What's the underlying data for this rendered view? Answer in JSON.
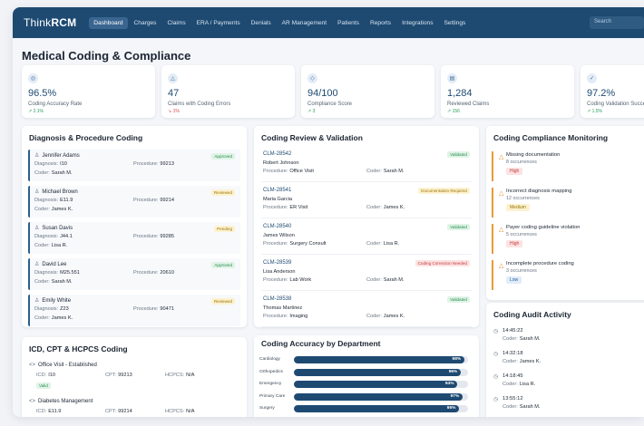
{
  "app": {
    "logo_think": "Think",
    "logo_rcm": "RCM",
    "search_placeholder": "Search"
  },
  "nav": [
    "Dashboard",
    "Charges",
    "Claims",
    "ERA / Payments",
    "Denials",
    "AR Management",
    "Patients",
    "Reports",
    "Integrations",
    "Settings"
  ],
  "page_title": "Medical Coding & Compliance",
  "stats": [
    {
      "icon": "target-icon",
      "glyph": "◎",
      "value": "96.5%",
      "label": "Coding Accuracy Rate",
      "change": "↗ 2.1%",
      "dir": "up"
    },
    {
      "icon": "warning-icon",
      "glyph": "△",
      "value": "47",
      "label": "Claims with Coding Errors",
      "change": "↘ 1%",
      "dir": "down"
    },
    {
      "icon": "shield-icon",
      "glyph": "◇",
      "value": "94/100",
      "label": "Compliance Score",
      "change": "↗ 3",
      "dir": "up"
    },
    {
      "icon": "document-icon",
      "glyph": "▤",
      "value": "1,284",
      "label": "Reviewed Claims",
      "change": "↗ 156",
      "dir": "up"
    },
    {
      "icon": "check-circle-icon",
      "glyph": "✓",
      "value": "97.2%",
      "label": "Coding Validation Success",
      "change": "↗ 1.5%",
      "dir": "up"
    }
  ],
  "diagnosis": {
    "title": "Diagnosis & Procedure Coding",
    "dx_label": "Diagnosis:",
    "proc_label": "Procedure:",
    "coder_label": "Coder:",
    "items": [
      {
        "name": "Jennifer Adams",
        "status": "Approved",
        "tone": "green",
        "diagnosis": "I10",
        "procedure": "99213",
        "coder": "Sarah M."
      },
      {
        "name": "Michael Brown",
        "status": "Reviewed",
        "tone": "yellow",
        "diagnosis": "E11.9",
        "procedure": "99214",
        "coder": "James K."
      },
      {
        "name": "Susan Davis",
        "status": "Pending",
        "tone": "yellow",
        "diagnosis": "J44.1",
        "procedure": "99285",
        "coder": "Lisa R."
      },
      {
        "name": "David Lee",
        "status": "Approved",
        "tone": "green",
        "diagnosis": "M25.551",
        "procedure": "20610",
        "coder": "Sarah M."
      },
      {
        "name": "Emily White",
        "status": "Reviewed",
        "tone": "yellow",
        "diagnosis": "Z23",
        "procedure": "90471",
        "coder": "James K."
      }
    ]
  },
  "review": {
    "title": "Coding Review & Validation",
    "proc_label": "Procedure:",
    "coder_label": "Coder:",
    "items": [
      {
        "id": "CLM-28542",
        "name": "Robert Johnson",
        "procedure": "Office Visit",
        "coder": "Sarah M.",
        "status": "Validated",
        "tone": "green"
      },
      {
        "id": "CLM-28541",
        "name": "Maria Garcia",
        "procedure": "ER Visit",
        "coder": "James K.",
        "status": "Documentation Required",
        "tone": "yellow"
      },
      {
        "id": "CLM-28540",
        "name": "James Wilson",
        "procedure": "Surgery Consult",
        "coder": "Lisa R.",
        "status": "Validated",
        "tone": "green"
      },
      {
        "id": "CLM-28539",
        "name": "Lisa Anderson",
        "procedure": "Lab Work",
        "coder": "Sarah M.",
        "status": "Coding Correction Needed",
        "tone": "red"
      },
      {
        "id": "CLM-28538",
        "name": "Thomas Martinez",
        "procedure": "Imaging",
        "coder": "James K.",
        "status": "Validated",
        "tone": "green"
      }
    ]
  },
  "compliance": {
    "title": "Coding Compliance Monitoring",
    "items": [
      {
        "title": "Missing documentation",
        "sub": "8 occurrences",
        "severity": "High",
        "tone": "high"
      },
      {
        "title": "Incorrect diagnosis mapping",
        "sub": "12 occurrences",
        "severity": "Medium",
        "tone": "med"
      },
      {
        "title": "Payer coding guideline violation",
        "sub": "5 occurrences",
        "severity": "High",
        "tone": "high"
      },
      {
        "title": "Incomplete procedure coding",
        "sub": "3 occurrences",
        "severity": "Low",
        "tone": "low"
      }
    ]
  },
  "audit": {
    "title": "Coding Audit Activity",
    "coder_label": "Coder:",
    "items": [
      {
        "time": "14:45:22",
        "coder": "Sarah M."
      },
      {
        "time": "14:32:18",
        "coder": "James K."
      },
      {
        "time": "14:18:45",
        "coder": "Lisa R."
      },
      {
        "time": "13:55:12",
        "coder": "Sarah M."
      }
    ]
  },
  "icd": {
    "title": "ICD, CPT & HCPCS Coding",
    "icd_label": "ICD:",
    "cpt_label": "CPT:",
    "hcpcs_label": "HCPCS:",
    "items": [
      {
        "title": "Office Visit - Established",
        "icd": "I10",
        "cpt": "99213",
        "hcpcs": "N/A",
        "status": "Valid"
      },
      {
        "title": "Diabetes Management",
        "icd": "E11.9",
        "cpt": "99214",
        "hcpcs": "N/A",
        "status": ""
      }
    ]
  },
  "accuracy": {
    "title": "Coding Accuracy by Department",
    "rows": [
      {
        "dept": "Cardiology",
        "pct": 98,
        "label": "98%"
      },
      {
        "dept": "Orthopedics",
        "pct": 96,
        "label": "96%"
      },
      {
        "dept": "Emergency",
        "pct": 94,
        "label": "94%"
      },
      {
        "dept": "Primary Care",
        "pct": 97,
        "label": "97%"
      },
      {
        "dept": "Surgery",
        "pct": 95,
        "label": "95%"
      }
    ]
  }
}
